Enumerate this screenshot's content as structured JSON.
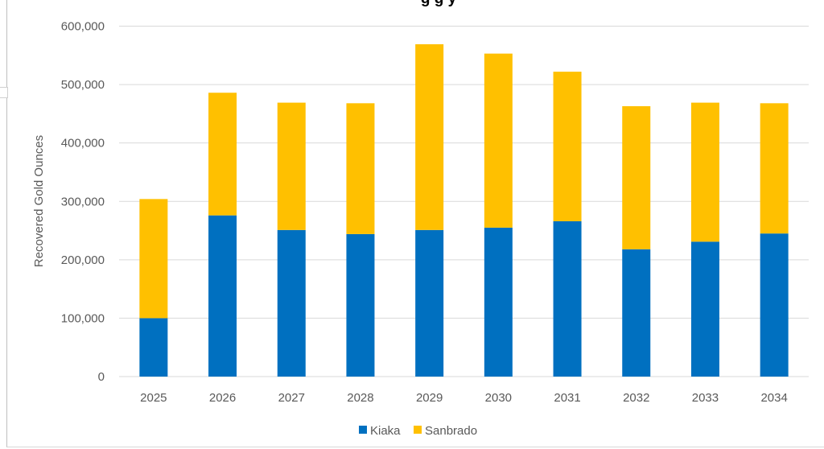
{
  "chart_data": {
    "type": "bar",
    "stacked": true,
    "title": "g       g                                                                     y",
    "categories": [
      "2025",
      "2026",
      "2027",
      "2028",
      "2029",
      "2030",
      "2031",
      "2032",
      "2033",
      "2034"
    ],
    "series": [
      {
        "name": "Kiaka",
        "color": "#0070C0",
        "values": [
          100000,
          276000,
          251000,
          244000,
          251000,
          255000,
          266000,
          218000,
          231000,
          245000
        ]
      },
      {
        "name": "Sanbrado",
        "color": "#FFC000",
        "values": [
          204000,
          210000,
          218000,
          224000,
          318000,
          298000,
          256000,
          245000,
          238000,
          223000
        ]
      }
    ],
    "ylabel": "Recovered Gold Ounces",
    "xlabel": "",
    "ylim": [
      0,
      600000
    ],
    "yticks": [
      "0",
      "100,000",
      "200,000",
      "300,000",
      "400,000",
      "500,000",
      "600,000"
    ],
    "grid": true,
    "legend": "bottom-center"
  }
}
